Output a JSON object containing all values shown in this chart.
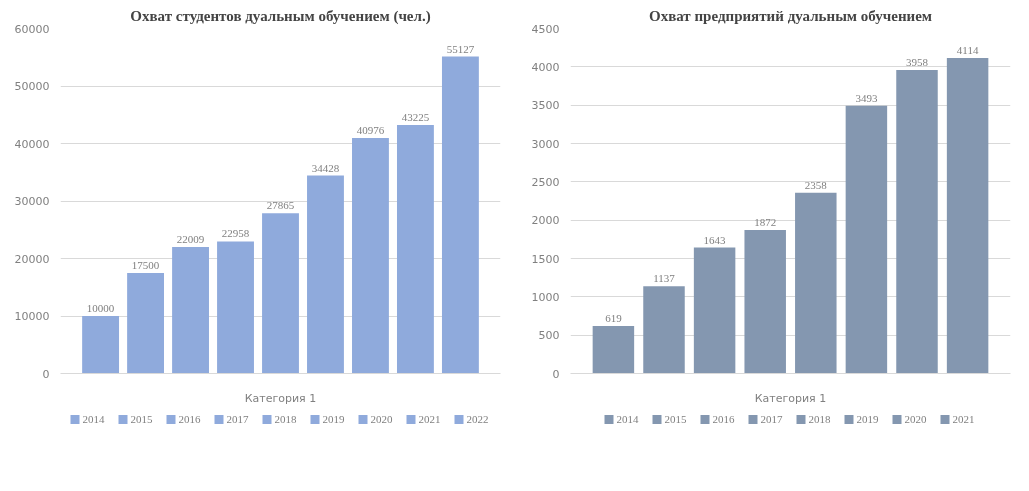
{
  "chart_data": [
    {
      "type": "bar",
      "title": "Охват студентов дуальным обучением (чел.)",
      "categories": [
        "Категория 1"
      ],
      "series": [
        {
          "name": "2014",
          "color": "#8faadc",
          "values": [
            10000
          ]
        },
        {
          "name": "2015",
          "color": "#8faadc",
          "values": [
            17500
          ]
        },
        {
          "name": "2016",
          "color": "#8faadc",
          "values": [
            22009
          ]
        },
        {
          "name": "2017",
          "color": "#8faadc",
          "values": [
            22958
          ]
        },
        {
          "name": "2018",
          "color": "#8faadc",
          "values": [
            27865
          ]
        },
        {
          "name": "2019",
          "color": "#8faadc",
          "values": [
            34428
          ]
        },
        {
          "name": "2020",
          "color": "#8faadc",
          "values": [
            40976
          ]
        },
        {
          "name": "2021",
          "color": "#8faadc",
          "values": [
            43225
          ]
        },
        {
          "name": "2022",
          "color": "#8faadc",
          "values": [
            55127
          ]
        }
      ],
      "ylim": [
        0,
        60000
      ],
      "yticks": [
        0,
        10000,
        20000,
        30000,
        40000,
        50000,
        60000
      ],
      "grid": "y",
      "legend": "bottom",
      "data_labels": true
    },
    {
      "type": "bar",
      "title": "Охват предприятий дуальным обучением",
      "categories": [
        "Категория 1"
      ],
      "series": [
        {
          "name": "2014",
          "color": "#8497b0",
          "values": [
            619
          ]
        },
        {
          "name": "2015",
          "color": "#8497b0",
          "values": [
            1137
          ]
        },
        {
          "name": "2016",
          "color": "#8497b0",
          "values": [
            1643
          ]
        },
        {
          "name": "2017",
          "color": "#8497b0",
          "values": [
            1872
          ]
        },
        {
          "name": "2018",
          "color": "#8497b0",
          "values": [
            2358
          ]
        },
        {
          "name": "2019",
          "color": "#8497b0",
          "values": [
            3493
          ]
        },
        {
          "name": "2020",
          "color": "#8497b0",
          "values": [
            3958
          ]
        },
        {
          "name": "2021",
          "color": "#8497b0",
          "values": [
            4114
          ]
        }
      ],
      "ylim": [
        0,
        4500
      ],
      "yticks": [
        0,
        500,
        1000,
        1500,
        2000,
        2500,
        3000,
        3500,
        4000,
        4500
      ],
      "grid": "y",
      "legend": "bottom",
      "data_labels": true
    }
  ]
}
